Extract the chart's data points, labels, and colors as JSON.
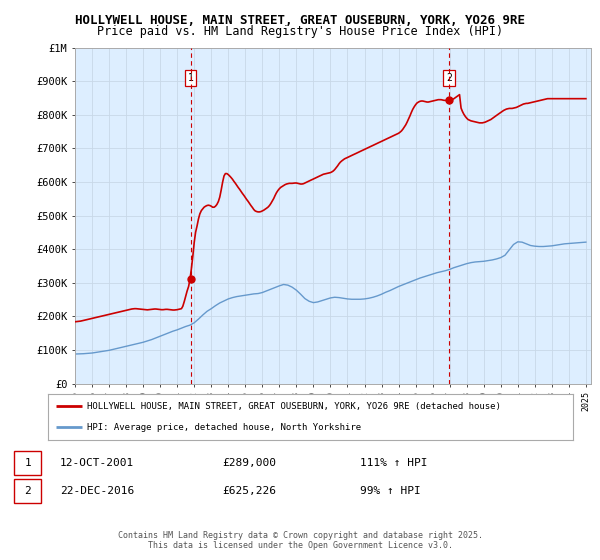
{
  "title_line1": "HOLLYWELL HOUSE, MAIN STREET, GREAT OUSEBURN, YORK, YO26 9RE",
  "title_line2": "Price paid vs. HM Land Registry's House Price Index (HPI)",
  "title_fontsize": 9.0,
  "subtitle_fontsize": 8.5,
  "ylim": [
    0,
    1000000
  ],
  "yticks": [
    0,
    100000,
    200000,
    300000,
    400000,
    500000,
    600000,
    700000,
    800000,
    900000,
    1000000
  ],
  "ytick_labels": [
    "£0",
    "£100K",
    "£200K",
    "£300K",
    "£400K",
    "£500K",
    "£600K",
    "£700K",
    "£800K",
    "£900K",
    "£1M"
  ],
  "sale1": {
    "date": "12-OCT-2001",
    "price": 289000,
    "label": "111% ↑ HPI"
  },
  "sale2": {
    "date": "22-DEC-2016",
    "price": 625226,
    "label": "99% ↑ HPI"
  },
  "sale1_x": 2001.79,
  "sale2_x": 2016.98,
  "legend_line1": "HOLLYWELL HOUSE, MAIN STREET, GREAT OUSEBURN, YORK, YO26 9RE (detached house)",
  "legend_line2": "HPI: Average price, detached house, North Yorkshire",
  "footer": "Contains HM Land Registry data © Crown copyright and database right 2025.\nThis data is licensed under the Open Government Licence v3.0.",
  "red_color": "#cc0000",
  "blue_color": "#6699cc",
  "vline_color": "#cc0000",
  "grid_color": "#c8d8e8",
  "chart_bg": "#ddeeff",
  "background_color": "#ffffff",
  "hpi_x": [
    1995.0,
    1995.25,
    1995.5,
    1995.75,
    1996.0,
    1996.25,
    1996.5,
    1996.75,
    1997.0,
    1997.25,
    1997.5,
    1997.75,
    1998.0,
    1998.25,
    1998.5,
    1998.75,
    1999.0,
    1999.25,
    1999.5,
    1999.75,
    2000.0,
    2000.25,
    2000.5,
    2000.75,
    2001.0,
    2001.25,
    2001.5,
    2001.75,
    2002.0,
    2002.25,
    2002.5,
    2002.75,
    2003.0,
    2003.25,
    2003.5,
    2003.75,
    2004.0,
    2004.25,
    2004.5,
    2004.75,
    2005.0,
    2005.25,
    2005.5,
    2005.75,
    2006.0,
    2006.25,
    2006.5,
    2006.75,
    2007.0,
    2007.25,
    2007.5,
    2007.75,
    2008.0,
    2008.25,
    2008.5,
    2008.75,
    2009.0,
    2009.25,
    2009.5,
    2009.75,
    2010.0,
    2010.25,
    2010.5,
    2010.75,
    2011.0,
    2011.25,
    2011.5,
    2011.75,
    2012.0,
    2012.25,
    2012.5,
    2012.75,
    2013.0,
    2013.25,
    2013.5,
    2013.75,
    2014.0,
    2014.25,
    2014.5,
    2014.75,
    2015.0,
    2015.25,
    2015.5,
    2015.75,
    2016.0,
    2016.25,
    2016.5,
    2016.75,
    2017.0,
    2017.25,
    2017.5,
    2017.75,
    2018.0,
    2018.25,
    2018.5,
    2018.75,
    2019.0,
    2019.25,
    2019.5,
    2019.75,
    2020.0,
    2020.25,
    2020.5,
    2020.75,
    2021.0,
    2021.25,
    2021.5,
    2021.75,
    2022.0,
    2022.25,
    2022.5,
    2022.75,
    2023.0,
    2023.25,
    2023.5,
    2023.75,
    2024.0,
    2024.25,
    2024.5,
    2024.75,
    2025.0
  ],
  "hpi_y": [
    88000,
    88500,
    89000,
    90000,
    91000,
    93000,
    95000,
    97000,
    99000,
    102000,
    105000,
    108000,
    111000,
    114000,
    117000,
    120000,
    123000,
    127000,
    131000,
    136000,
    141000,
    146000,
    151000,
    156000,
    160000,
    165000,
    170000,
    174000,
    181000,
    192000,
    204000,
    215000,
    223000,
    232000,
    240000,
    246000,
    252000,
    256000,
    259000,
    261000,
    263000,
    265000,
    267000,
    268000,
    271000,
    276000,
    281000,
    286000,
    291000,
    295000,
    293000,
    287000,
    278000,
    266000,
    253000,
    245000,
    241000,
    243000,
    247000,
    251000,
    255000,
    257000,
    256000,
    254000,
    252000,
    251000,
    251000,
    251000,
    252000,
    254000,
    257000,
    261000,
    266000,
    272000,
    277000,
    283000,
    289000,
    294000,
    299000,
    304000,
    309000,
    314000,
    318000,
    322000,
    326000,
    330000,
    333000,
    336000,
    340000,
    345000,
    349000,
    353000,
    357000,
    360000,
    362000,
    363000,
    364000,
    366000,
    368000,
    371000,
    375000,
    382000,
    398000,
    414000,
    422000,
    421000,
    416000,
    411000,
    409000,
    408000,
    408000,
    409000,
    410000,
    412000,
    414000,
    416000,
    417000,
    418000,
    419000,
    420000,
    421000
  ],
  "red_x": [
    1995.0,
    1995.08,
    1995.17,
    1995.25,
    1995.33,
    1995.42,
    1995.5,
    1995.58,
    1995.67,
    1995.75,
    1995.83,
    1995.92,
    1996.0,
    1996.08,
    1996.17,
    1996.25,
    1996.33,
    1996.42,
    1996.5,
    1996.58,
    1996.67,
    1996.75,
    1996.83,
    1996.92,
    1997.0,
    1997.08,
    1997.17,
    1997.25,
    1997.33,
    1997.42,
    1997.5,
    1997.58,
    1997.67,
    1997.75,
    1997.83,
    1997.92,
    1998.0,
    1998.08,
    1998.17,
    1998.25,
    1998.33,
    1998.42,
    1998.5,
    1998.58,
    1998.67,
    1998.75,
    1998.83,
    1998.92,
    1999.0,
    1999.08,
    1999.17,
    1999.25,
    1999.33,
    1999.42,
    1999.5,
    1999.58,
    1999.67,
    1999.75,
    1999.83,
    1999.92,
    2000.0,
    2000.08,
    2000.17,
    2000.25,
    2000.33,
    2000.42,
    2000.5,
    2000.58,
    2000.67,
    2000.75,
    2000.83,
    2000.92,
    2001.0,
    2001.08,
    2001.17,
    2001.25,
    2001.33,
    2001.42,
    2001.5,
    2001.58,
    2001.67,
    2001.75,
    2001.83,
    2001.92,
    2002.0,
    2002.08,
    2002.17,
    2002.25,
    2002.33,
    2002.42,
    2002.5,
    2002.58,
    2002.67,
    2002.75,
    2002.83,
    2002.92,
    2003.0,
    2003.08,
    2003.17,
    2003.25,
    2003.33,
    2003.42,
    2003.5,
    2003.58,
    2003.67,
    2003.75,
    2003.83,
    2003.92,
    2004.0,
    2004.08,
    2004.17,
    2004.25,
    2004.33,
    2004.42,
    2004.5,
    2004.58,
    2004.67,
    2004.75,
    2004.83,
    2004.92,
    2005.0,
    2005.08,
    2005.17,
    2005.25,
    2005.33,
    2005.42,
    2005.5,
    2005.58,
    2005.67,
    2005.75,
    2005.83,
    2005.92,
    2006.0,
    2006.08,
    2006.17,
    2006.25,
    2006.33,
    2006.42,
    2006.5,
    2006.58,
    2006.67,
    2006.75,
    2006.83,
    2006.92,
    2007.0,
    2007.08,
    2007.17,
    2007.25,
    2007.33,
    2007.42,
    2007.5,
    2007.58,
    2007.67,
    2007.75,
    2007.83,
    2007.92,
    2008.0,
    2008.08,
    2008.17,
    2008.25,
    2008.33,
    2008.42,
    2008.5,
    2008.58,
    2008.67,
    2008.75,
    2008.83,
    2008.92,
    2009.0,
    2009.08,
    2009.17,
    2009.25,
    2009.33,
    2009.42,
    2009.5,
    2009.58,
    2009.67,
    2009.75,
    2009.83,
    2009.92,
    2010.0,
    2010.08,
    2010.17,
    2010.25,
    2010.33,
    2010.42,
    2010.5,
    2010.58,
    2010.67,
    2010.75,
    2010.83,
    2010.92,
    2011.0,
    2011.08,
    2011.17,
    2011.25,
    2011.33,
    2011.42,
    2011.5,
    2011.58,
    2011.67,
    2011.75,
    2011.83,
    2011.92,
    2012.0,
    2012.08,
    2012.17,
    2012.25,
    2012.33,
    2012.42,
    2012.5,
    2012.58,
    2012.67,
    2012.75,
    2012.83,
    2012.92,
    2013.0,
    2013.08,
    2013.17,
    2013.25,
    2013.33,
    2013.42,
    2013.5,
    2013.58,
    2013.67,
    2013.75,
    2013.83,
    2013.92,
    2014.0,
    2014.08,
    2014.17,
    2014.25,
    2014.33,
    2014.42,
    2014.5,
    2014.58,
    2014.67,
    2014.75,
    2014.83,
    2014.92,
    2015.0,
    2015.08,
    2015.17,
    2015.25,
    2015.33,
    2015.42,
    2015.5,
    2015.58,
    2015.67,
    2015.75,
    2015.83,
    2015.92,
    2016.0,
    2016.08,
    2016.17,
    2016.25,
    2016.33,
    2016.42,
    2016.5,
    2016.58,
    2016.67,
    2016.75,
    2016.83,
    2016.92,
    2017.0,
    2017.08,
    2017.17,
    2017.25,
    2017.33,
    2017.42,
    2017.5,
    2017.58,
    2017.67,
    2017.75,
    2017.83,
    2017.92,
    2018.0,
    2018.08,
    2018.17,
    2018.25,
    2018.33,
    2018.42,
    2018.5,
    2018.58,
    2018.67,
    2018.75,
    2018.83,
    2018.92,
    2019.0,
    2019.08,
    2019.17,
    2019.25,
    2019.33,
    2019.42,
    2019.5,
    2019.58,
    2019.67,
    2019.75,
    2019.83,
    2019.92,
    2020.0,
    2020.08,
    2020.17,
    2020.25,
    2020.33,
    2020.42,
    2020.5,
    2020.58,
    2020.67,
    2020.75,
    2020.83,
    2020.92,
    2021.0,
    2021.08,
    2021.17,
    2021.25,
    2021.33,
    2021.42,
    2021.5,
    2021.58,
    2021.67,
    2021.75,
    2021.83,
    2021.92,
    2022.0,
    2022.08,
    2022.17,
    2022.25,
    2022.33,
    2022.42,
    2022.5,
    2022.58,
    2022.67,
    2022.75,
    2022.83,
    2022.92,
    2023.0,
    2023.08,
    2023.17,
    2023.25,
    2023.33,
    2023.42,
    2023.5,
    2023.58,
    2023.67,
    2023.75,
    2023.83,
    2023.92,
    2024.0,
    2024.08,
    2024.17,
    2024.25,
    2024.33,
    2024.42,
    2024.5,
    2024.58,
    2024.67,
    2024.75,
    2024.83,
    2024.92,
    2025.0
  ],
  "red_y": [
    184000,
    184500,
    185000,
    185500,
    186000,
    187000,
    188000,
    189000,
    190000,
    191000,
    192000,
    193000,
    194000,
    195000,
    196000,
    197000,
    198000,
    199000,
    200000,
    201000,
    202000,
    203000,
    204000,
    205000,
    206000,
    207000,
    208000,
    209000,
    210000,
    211000,
    212000,
    213000,
    214000,
    215000,
    216000,
    217000,
    218000,
    219000,
    220000,
    221000,
    222000,
    222500,
    223000,
    223000,
    222500,
    222000,
    221500,
    221000,
    220500,
    220000,
    219500,
    219500,
    220000,
    220500,
    221000,
    221500,
    222000,
    222000,
    221500,
    221000,
    220500,
    220000,
    220000,
    220500,
    221000,
    221000,
    220500,
    220000,
    219500,
    219000,
    219000,
    219500,
    220000,
    221000,
    222000,
    223000,
    230000,
    245000,
    260000,
    275000,
    289000,
    310000,
    340000,
    380000,
    420000,
    450000,
    470000,
    490000,
    505000,
    515000,
    520000,
    525000,
    528000,
    530000,
    531000,
    530000,
    528000,
    525000,
    525000,
    528000,
    533000,
    542000,
    555000,
    575000,
    600000,
    618000,
    625000,
    625000,
    622000,
    618000,
    613000,
    608000,
    602000,
    596000,
    590000,
    584000,
    578000,
    572000,
    566000,
    560000,
    554000,
    548000,
    542000,
    536000,
    530000,
    524000,
    518000,
    514000,
    512000,
    511000,
    511000,
    512000,
    514000,
    516000,
    519000,
    522000,
    525000,
    530000,
    536000,
    543000,
    551000,
    560000,
    568000,
    575000,
    580000,
    584000,
    587000,
    590000,
    592000,
    594000,
    595000,
    596000,
    596000,
    596000,
    596500,
    597000,
    597000,
    596000,
    595000,
    594000,
    594000,
    595000,
    597000,
    599000,
    601000,
    603000,
    605000,
    607000,
    609000,
    611000,
    613000,
    615000,
    617000,
    619000,
    621000,
    623000,
    624000,
    625226,
    626000,
    627000,
    628000,
    630000,
    633000,
    637000,
    642000,
    648000,
    654000,
    659000,
    663000,
    666000,
    669000,
    671000,
    673000,
    675000,
    677000,
    679000,
    681000,
    683000,
    685000,
    687000,
    689000,
    691000,
    693000,
    695000,
    697000,
    699000,
    701000,
    703000,
    705000,
    707000,
    709000,
    711000,
    713000,
    715000,
    717000,
    719000,
    721000,
    723000,
    725000,
    727000,
    729000,
    731000,
    733000,
    735000,
    737000,
    739000,
    741000,
    743000,
    745000,
    748000,
    752000,
    757000,
    763000,
    770000,
    778000,
    787000,
    797000,
    807000,
    816000,
    824000,
    830000,
    835000,
    838000,
    840000,
    841000,
    841000,
    840000,
    839000,
    838000,
    838000,
    839000,
    840000,
    841000,
    842000,
    843000,
    844000,
    845000,
    845000,
    845000,
    844000,
    843000,
    843000,
    842000,
    842000,
    843000,
    844000,
    846000,
    848000,
    851000,
    854000,
    857000,
    860000,
    820000,
    810000,
    802000,
    795000,
    790000,
    786000,
    784000,
    782000,
    781000,
    780000,
    779000,
    778000,
    777000,
    776000,
    776000,
    776000,
    777000,
    778000,
    780000,
    782000,
    784000,
    786000,
    789000,
    792000,
    795000,
    798000,
    801000,
    804000,
    807000,
    810000,
    813000,
    815000,
    817000,
    818000,
    819000,
    819000,
    819000,
    820000,
    821000,
    822000,
    824000,
    826000,
    828000,
    830000,
    832000,
    833000,
    834000,
    834000,
    835000,
    836000,
    837000,
    838000,
    839000,
    840000,
    841000,
    842000,
    843000,
    844000,
    845000,
    846000,
    847000,
    848000,
    848000,
    848000,
    848000,
    848000,
    848000,
    848000,
    848000,
    848000,
    848000,
    848000,
    848000,
    848000,
    848000,
    848000,
    848000,
    848000,
    848000,
    848000,
    848000,
    848000,
    848000,
    848000,
    848000,
    848000,
    848000,
    848000,
    848000
  ]
}
